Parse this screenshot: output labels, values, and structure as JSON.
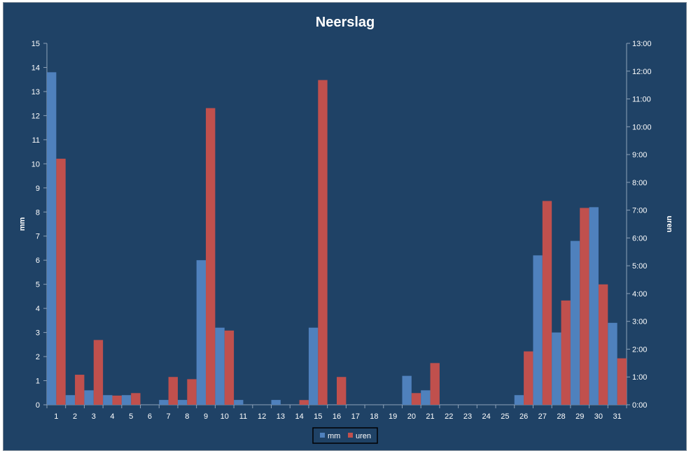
{
  "chart_data": {
    "type": "bar",
    "title": "Neerslag",
    "ylabel": "mm",
    "y2label": "uren",
    "categories": [
      "1",
      "2",
      "3",
      "4",
      "5",
      "6",
      "7",
      "8",
      "9",
      "10",
      "11",
      "12",
      "13",
      "14",
      "15",
      "16",
      "17",
      "18",
      "19",
      "20",
      "21",
      "22",
      "23",
      "24",
      "25",
      "26",
      "27",
      "28",
      "29",
      "30",
      "31"
    ],
    "ylim": [
      0,
      15
    ],
    "y_ticks": [
      "0",
      "1",
      "2",
      "3",
      "4",
      "5",
      "6",
      "7",
      "8",
      "9",
      "10",
      "11",
      "12",
      "13",
      "14",
      "15"
    ],
    "y2lim_hours": [
      0,
      13
    ],
    "y2_ticks": [
      "0:00",
      "1:00",
      "2:00",
      "3:00",
      "4:00",
      "5:00",
      "6:00",
      "7:00",
      "8:00",
      "9:00",
      "10:00",
      "11:00",
      "12:00",
      "13:00"
    ],
    "series": [
      {
        "name": "mm",
        "axis": "left",
        "color": "#4f81bd",
        "values": [
          13.8,
          0.4,
          0.6,
          0.4,
          0.4,
          0,
          0.2,
          0.2,
          6.0,
          3.2,
          0.2,
          0,
          0.2,
          0,
          3.2,
          0,
          0,
          0,
          0,
          1.2,
          0.6,
          0,
          0,
          0,
          0,
          0.4,
          6.2,
          3.0,
          6.8,
          8.2,
          3.4
        ]
      },
      {
        "name": "uren",
        "axis": "right",
        "unit": "hours",
        "color": "#c0504d",
        "values": [
          8.85,
          1.08,
          2.33,
          0.33,
          0.42,
          0,
          1.0,
          0.92,
          10.67,
          2.67,
          0,
          0,
          0,
          0.17,
          11.68,
          1.0,
          0,
          0,
          0,
          0.42,
          1.5,
          0,
          0,
          0,
          0,
          1.92,
          7.33,
          3.75,
          7.08,
          4.33,
          1.67
        ]
      }
    ],
    "grid": false,
    "legend_position": "bottom"
  },
  "colors": {
    "plot_background": "#1f4266",
    "axis_line": "#8da2b8",
    "text": "#ffffff"
  }
}
